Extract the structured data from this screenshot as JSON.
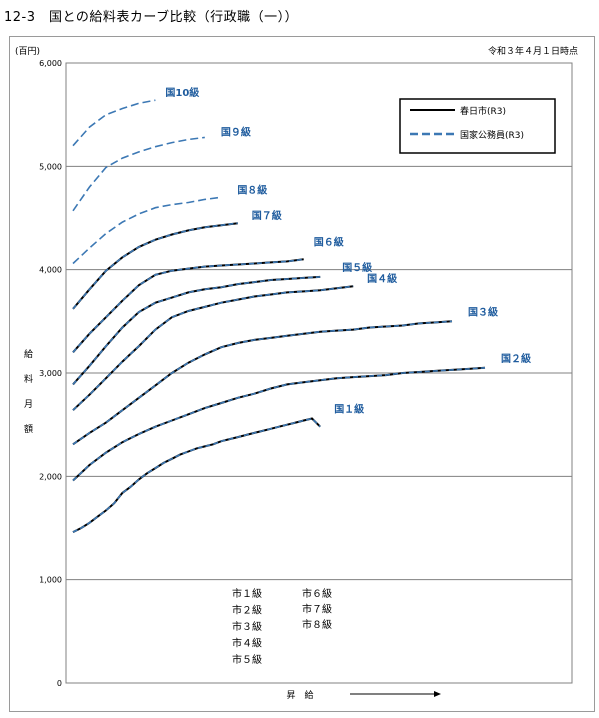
{
  "header": {
    "title": "12-3　国との給料表カーブ比較（行政職（一））",
    "unit": "(百円)",
    "date": "令和３年４月１日時点"
  },
  "colors": {
    "kasugai": "#000000",
    "national": "#3c78b4",
    "label": "#1f5c9e",
    "grid": "#808080"
  },
  "chart_data": {
    "type": "line",
    "title": "国との給料表カーブ比較（行政職（一））",
    "xlabel": "昇　給",
    "ylabel": "給料月額",
    "ylim": [
      0,
      6000
    ],
    "yticks": [
      "0",
      "1,000",
      "2,000",
      "3,000",
      "4,000",
      "5,000",
      "6,000"
    ],
    "grid": true,
    "legend_position": "top-right",
    "legend": [
      "春日市(R3)",
      "国家公務員(R3)"
    ],
    "series": [
      {
        "name": "国１級",
        "x": [
          0,
          4,
          8,
          12,
          16,
          20,
          24,
          28,
          32,
          36,
          40,
          44,
          48,
          52,
          56,
          60,
          64,
          68,
          72,
          76,
          80,
          84,
          88,
          92,
          96,
          100,
          104,
          108,
          112,
          116,
          120
        ],
        "values": [
          1460,
          1500,
          1550,
          1610,
          1670,
          1740,
          1840,
          1900,
          1970,
          2030,
          2080,
          2130,
          2170,
          2210,
          2240,
          2270,
          2290,
          2310,
          2340,
          2360,
          2380,
          2400,
          2420,
          2440,
          2460,
          2480,
          2500,
          2520,
          2540,
          2560,
          2480
        ]
      },
      {
        "name": "国２級",
        "x": [
          0,
          8,
          16,
          24,
          32,
          40,
          48,
          56,
          64,
          72,
          80,
          88,
          96,
          104,
          112,
          120,
          128,
          136,
          144,
          152,
          160,
          168,
          176,
          184,
          192,
          200
        ],
        "values": [
          1960,
          2110,
          2230,
          2330,
          2410,
          2480,
          2540,
          2600,
          2660,
          2710,
          2760,
          2800,
          2850,
          2890,
          2910,
          2930,
          2950,
          2960,
          2970,
          2980,
          3000,
          3010,
          3020,
          3030,
          3040,
          3050
        ]
      },
      {
        "name": "国３級",
        "x": [
          0,
          8,
          16,
          24,
          32,
          40,
          48,
          56,
          64,
          72,
          80,
          88,
          96,
          104,
          112,
          120,
          128,
          136,
          144,
          152,
          160,
          168,
          176,
          184
        ],
        "values": [
          2310,
          2420,
          2520,
          2640,
          2760,
          2880,
          3000,
          3100,
          3180,
          3250,
          3290,
          3320,
          3340,
          3360,
          3380,
          3400,
          3410,
          3420,
          3440,
          3450,
          3460,
          3480,
          3490,
          3500
        ]
      },
      {
        "name": "国４級",
        "x": [
          0,
          8,
          16,
          24,
          32,
          40,
          48,
          56,
          64,
          72,
          80,
          88,
          96,
          104,
          112,
          120,
          128,
          136
        ],
        "values": [
          2640,
          2790,
          2950,
          3110,
          3260,
          3420,
          3540,
          3600,
          3640,
          3680,
          3710,
          3740,
          3760,
          3780,
          3790,
          3800,
          3820,
          3840
        ]
      },
      {
        "name": "国５級",
        "x": [
          0,
          8,
          16,
          24,
          32,
          40,
          48,
          56,
          64,
          72,
          80,
          88,
          96,
          104,
          112,
          120
        ],
        "values": [
          2890,
          3070,
          3260,
          3440,
          3590,
          3680,
          3730,
          3780,
          3810,
          3830,
          3860,
          3880,
          3900,
          3910,
          3920,
          3930
        ]
      },
      {
        "name": "国６級",
        "x": [
          0,
          8,
          16,
          24,
          32,
          40,
          48,
          56,
          64,
          72,
          80,
          88,
          96,
          104,
          112
        ],
        "values": [
          3200,
          3380,
          3540,
          3700,
          3850,
          3950,
          3990,
          4010,
          4030,
          4040,
          4050,
          4060,
          4070,
          4080,
          4100
        ]
      },
      {
        "name": "国７級",
        "x": [
          0,
          8,
          16,
          24,
          32,
          40,
          48,
          56,
          64,
          72,
          80
        ],
        "values": [
          3620,
          3810,
          3990,
          4120,
          4220,
          4290,
          4340,
          4380,
          4410,
          4430,
          4450
        ]
      },
      {
        "name": "国８級",
        "x": [
          0,
          8,
          16,
          24,
          32,
          40,
          48,
          56,
          64,
          72
        ],
        "values": [
          4060,
          4210,
          4350,
          4460,
          4540,
          4600,
          4630,
          4650,
          4680,
          4700
        ]
      },
      {
        "name": "国９級",
        "x": [
          0,
          8,
          16,
          24,
          32,
          40,
          48,
          56,
          64
        ],
        "values": [
          4570,
          4800,
          4990,
          5080,
          5140,
          5190,
          5230,
          5260,
          5280
        ]
      },
      {
        "name": "国10級",
        "x": [
          0,
          8,
          16,
          24,
          32,
          40
        ],
        "values": [
          5200,
          5380,
          5500,
          5560,
          5610,
          5640
        ]
      }
    ],
    "xlim": [
      0,
      200
    ]
  },
  "city_labels": {
    "col1": [
      "市１級",
      "市２級",
      "市３級",
      "市４級",
      "市５級"
    ],
    "col2": [
      "市６級",
      "市７級",
      "市８級"
    ]
  }
}
